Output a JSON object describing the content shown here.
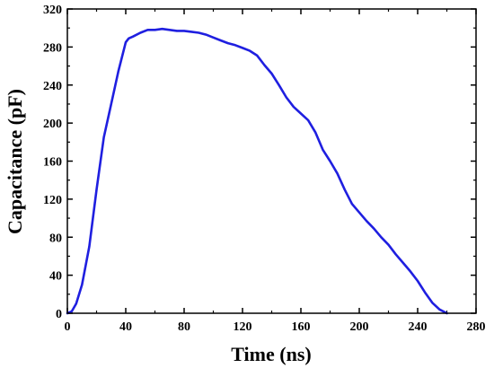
{
  "chart_data": {
    "type": "line",
    "title": "",
    "xlabel": "Time (ns)",
    "ylabel": "Capacitance (pF)",
    "xlim": [
      0,
      280
    ],
    "ylim": [
      0,
      320
    ],
    "xticks": [
      0,
      40,
      80,
      120,
      160,
      200,
      240,
      280
    ],
    "yticks": [
      0,
      40,
      80,
      120,
      160,
      200,
      240,
      280,
      320
    ],
    "grid": false,
    "legend": "none",
    "series": [
      {
        "color": "#1f1fe0",
        "x": [
          0,
          3,
          6,
          10,
          15,
          20,
          25,
          30,
          35,
          40,
          42,
          45,
          50,
          55,
          60,
          65,
          70,
          75,
          80,
          85,
          90,
          95,
          100,
          105,
          110,
          115,
          120,
          125,
          130,
          135,
          140,
          145,
          150,
          155,
          160,
          165,
          170,
          175,
          180,
          185,
          190,
          195,
          200,
          205,
          210,
          215,
          220,
          225,
          230,
          235,
          240,
          245,
          250,
          255,
          260
        ],
        "y": [
          0,
          2,
          10,
          30,
          70,
          130,
          185,
          220,
          255,
          285,
          289,
          291,
          295,
          298,
          298,
          299,
          298,
          297,
          297,
          296,
          295,
          293,
          290,
          287,
          284,
          282,
          279,
          276,
          271,
          261,
          252,
          240,
          227,
          217,
          210,
          203,
          190,
          172,
          160,
          147,
          130,
          115,
          106,
          97,
          89,
          80,
          72,
          62,
          53,
          44,
          34,
          22,
          11,
          4,
          0
        ]
      }
    ]
  }
}
